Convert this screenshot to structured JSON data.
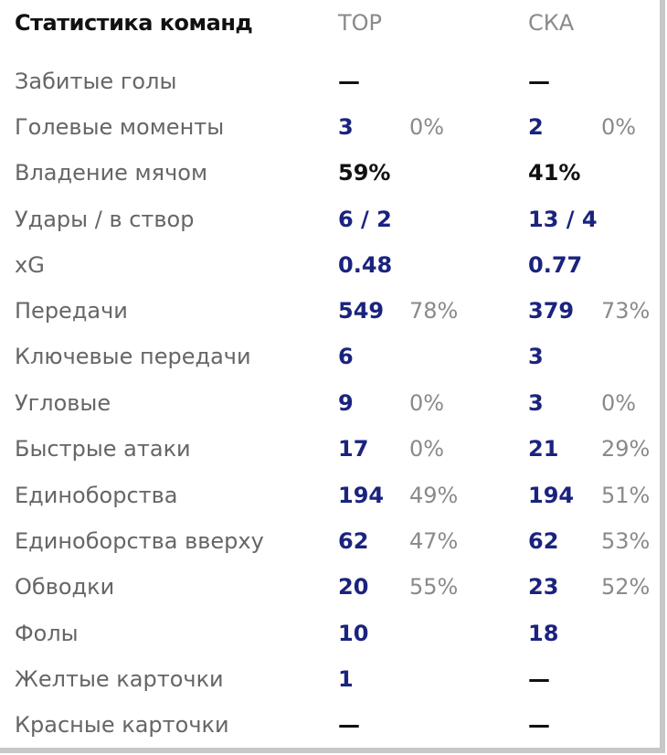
{
  "header": {
    "title": "Статистика команд",
    "team1": "ТОР",
    "team2": "СКА"
  },
  "rows": [
    {
      "label": "Забитые голы",
      "t1": "—",
      "p1": "",
      "t2": "—",
      "p2": ""
    },
    {
      "label": "Голевые моменты",
      "t1": "3",
      "p1": "0%",
      "t2": "2",
      "p2": "0%"
    },
    {
      "label": "Владение мячом",
      "t1": "59%",
      "p1": "",
      "t2": "41%",
      "p2": ""
    },
    {
      "label": "Удары / в створ",
      "t1": "6 / 2",
      "p1": "",
      "t2": "13 / 4",
      "p2": ""
    },
    {
      "label": "xG",
      "t1": "0.48",
      "p1": "",
      "t2": "0.77",
      "p2": ""
    },
    {
      "label": "Передачи",
      "t1": "549",
      "p1": "78%",
      "t2": "379",
      "p2": "73%"
    },
    {
      "label": "Ключевые передачи",
      "t1": "6",
      "p1": "",
      "t2": "3",
      "p2": ""
    },
    {
      "label": "Угловые",
      "t1": "9",
      "p1": "0%",
      "t2": "3",
      "p2": "0%"
    },
    {
      "label": "Быстрые атаки",
      "t1": "17",
      "p1": "0%",
      "t2": "21",
      "p2": "29%"
    },
    {
      "label": "Единоборства",
      "t1": "194",
      "p1": "49%",
      "t2": "194",
      "p2": "51%"
    },
    {
      "label": "Единоборства вверху",
      "t1": "62",
      "p1": "47%",
      "t2": "62",
      "p2": "53%"
    },
    {
      "label": "Обводки",
      "t1": "20",
      "p1": "55%",
      "t2": "23",
      "p2": "52%"
    },
    {
      "label": "Фолы",
      "t1": "10",
      "p1": "",
      "t2": "18",
      "p2": ""
    },
    {
      "label": "Желтые карточки",
      "t1": "1",
      "p1": "",
      "t2": "—",
      "p2": ""
    },
    {
      "label": "Красные карточки",
      "t1": "—",
      "p1": "",
      "t2": "—",
      "p2": ""
    }
  ]
}
